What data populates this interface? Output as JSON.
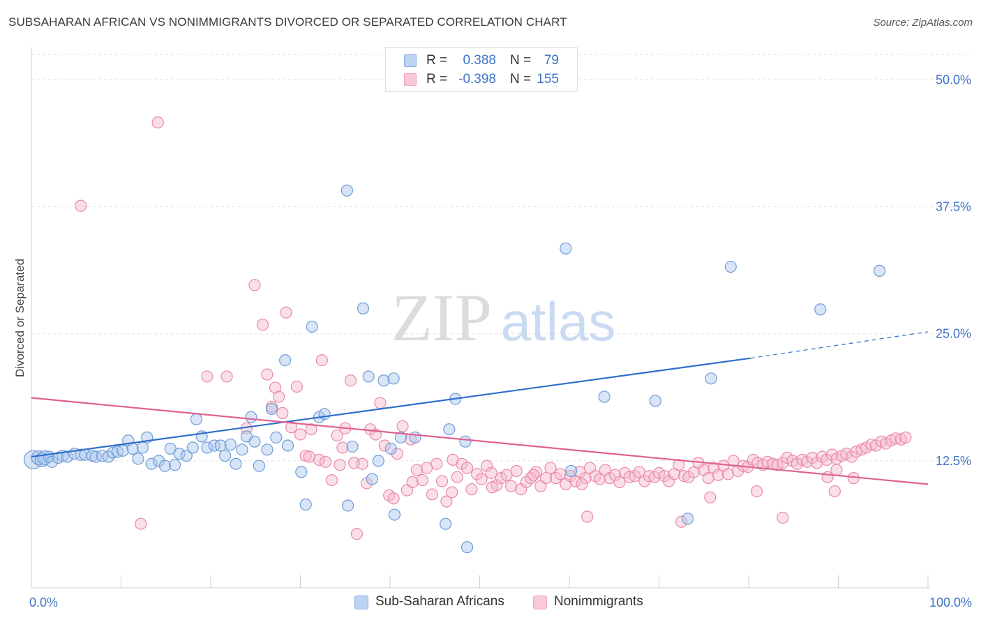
{
  "title": "SUBSAHARAN AFRICAN VS NONIMMIGRANTS DIVORCED OR SEPARATED CORRELATION CHART",
  "source": "Source: ZipAtlas.com",
  "watermark": {
    "part1": "ZIP",
    "part2": "atlas"
  },
  "legend": {
    "r_label": "R =",
    "n_label": "N =",
    "rows": [
      {
        "r": "0.388",
        "n": "79"
      },
      {
        "r": "-0.398",
        "n": "155"
      }
    ]
  },
  "colors": {
    "blue_fill": "#a9c6ee",
    "blue_stroke": "#6f9bd8",
    "blue_line": "#2f6fcc",
    "pink_fill": "#f5b8cc",
    "pink_stroke": "#e98aa9",
    "pink_line": "#e0628e",
    "tick_label": "#3e74c8",
    "grid": "#e2e2e2"
  },
  "chart_data": {
    "type": "scatter",
    "xlabel": "",
    "ylabel": "Divorced or Separated",
    "xlim": [
      0,
      100
    ],
    "ylim": [
      0,
      50
    ],
    "x_tick_labels": [
      "0.0%",
      "100.0%"
    ],
    "y_ticks": [
      12.5,
      25.0,
      37.5,
      50.0
    ],
    "y_tick_labels": [
      "12.5%",
      "25.0%",
      "37.5%",
      "50.0%"
    ],
    "grid": true,
    "legend_position": "top-center",
    "series": [
      {
        "name": "Sub-Saharan Africans",
        "color": "#a9c6ee",
        "trend": {
          "x0": 0,
          "y0": 12.9,
          "x1": 80.2,
          "y1": 22.6,
          "dash_to_x": 100,
          "dash_to_y": 25.2
        },
        "points": [
          [
            0.2,
            12.6
          ],
          [
            0.8,
            12.8
          ],
          [
            1.2,
            12.6
          ],
          [
            1.5,
            12.8
          ],
          [
            2.0,
            12.9
          ],
          [
            2.3,
            12.4
          ],
          [
            3.0,
            12.8
          ],
          [
            3.5,
            13.0
          ],
          [
            4.0,
            12.9
          ],
          [
            4.8,
            13.2
          ],
          [
            5.5,
            13.1
          ],
          [
            6.0,
            13.1
          ],
          [
            6.8,
            13.0
          ],
          [
            7.2,
            12.9
          ],
          [
            7.9,
            13.0
          ],
          [
            8.6,
            12.9
          ],
          [
            9.1,
            13.3
          ],
          [
            9.6,
            13.4
          ],
          [
            10.2,
            13.5
          ],
          [
            10.8,
            14.5
          ],
          [
            11.3,
            13.7
          ],
          [
            11.9,
            12.7
          ],
          [
            12.4,
            13.8
          ],
          [
            12.9,
            14.8
          ],
          [
            13.4,
            12.2
          ],
          [
            14.2,
            12.5
          ],
          [
            14.9,
            12.0
          ],
          [
            15.5,
            13.7
          ],
          [
            16.0,
            12.1
          ],
          [
            16.5,
            13.2
          ],
          [
            17.3,
            13.0
          ],
          [
            18.0,
            13.8
          ],
          [
            18.4,
            16.6
          ],
          [
            19.0,
            14.9
          ],
          [
            19.6,
            13.8
          ],
          [
            20.4,
            14.0
          ],
          [
            21.1,
            14.0
          ],
          [
            21.6,
            13.0
          ],
          [
            22.2,
            14.1
          ],
          [
            22.8,
            12.2
          ],
          [
            23.5,
            13.6
          ],
          [
            24.0,
            14.9
          ],
          [
            24.5,
            16.8
          ],
          [
            24.9,
            14.4
          ],
          [
            25.4,
            12.0
          ],
          [
            26.3,
            13.6
          ],
          [
            26.8,
            17.6
          ],
          [
            27.3,
            14.8
          ],
          [
            28.3,
            22.4
          ],
          [
            28.6,
            14.0
          ],
          [
            30.1,
            11.4
          ],
          [
            30.6,
            8.2
          ],
          [
            31.3,
            25.7
          ],
          [
            32.1,
            16.8
          ],
          [
            32.7,
            17.1
          ],
          [
            35.2,
            39.1
          ],
          [
            35.3,
            8.1
          ],
          [
            35.8,
            13.9
          ],
          [
            37.0,
            27.5
          ],
          [
            37.6,
            20.8
          ],
          [
            38.0,
            10.7
          ],
          [
            38.7,
            12.5
          ],
          [
            39.3,
            20.4
          ],
          [
            40.1,
            13.7
          ],
          [
            40.4,
            20.6
          ],
          [
            40.5,
            7.2
          ],
          [
            41.2,
            14.8
          ],
          [
            42.8,
            14.8
          ],
          [
            46.2,
            6.3
          ],
          [
            46.6,
            15.6
          ],
          [
            47.3,
            18.6
          ],
          [
            48.4,
            14.4
          ],
          [
            48.6,
            4.0
          ],
          [
            59.6,
            33.4
          ],
          [
            60.2,
            11.5
          ],
          [
            63.9,
            18.8
          ],
          [
            69.6,
            18.4
          ],
          [
            73.2,
            6.8
          ],
          [
            75.8,
            20.6
          ],
          [
            78.0,
            31.6
          ],
          [
            88.0,
            27.4
          ],
          [
            94.6,
            31.2
          ]
        ]
      },
      {
        "name": "Nonimmigrants",
        "color": "#f5b8cc",
        "trend": {
          "x0": 0,
          "y0": 18.7,
          "x1": 100,
          "y1": 10.2
        },
        "points": [
          [
            5.5,
            37.6
          ],
          [
            12.2,
            6.3
          ],
          [
            14.1,
            45.8
          ],
          [
            19.6,
            20.8
          ],
          [
            21.8,
            20.8
          ],
          [
            24.0,
            15.7
          ],
          [
            24.9,
            29.8
          ],
          [
            25.8,
            25.9
          ],
          [
            26.3,
            21.0
          ],
          [
            26.8,
            17.8
          ],
          [
            27.2,
            19.7
          ],
          [
            27.6,
            18.8
          ],
          [
            28.0,
            17.2
          ],
          [
            28.4,
            27.1
          ],
          [
            29.0,
            15.8
          ],
          [
            29.6,
            19.8
          ],
          [
            30.0,
            15.1
          ],
          [
            30.6,
            13.0
          ],
          [
            31.2,
            15.6
          ],
          [
            32.1,
            12.6
          ],
          [
            32.4,
            22.4
          ],
          [
            32.8,
            12.4
          ],
          [
            33.5,
            10.6
          ],
          [
            34.1,
            15.0
          ],
          [
            34.4,
            12.1
          ],
          [
            35.0,
            15.7
          ],
          [
            35.6,
            20.4
          ],
          [
            36.0,
            12.3
          ],
          [
            36.9,
            12.2
          ],
          [
            37.4,
            10.3
          ],
          [
            37.8,
            15.6
          ],
          [
            38.4,
            15.1
          ],
          [
            38.9,
            18.2
          ],
          [
            39.4,
            14.0
          ],
          [
            39.9,
            9.1
          ],
          [
            40.4,
            8.8
          ],
          [
            40.8,
            13.2
          ],
          [
            41.4,
            15.9
          ],
          [
            41.9,
            9.6
          ],
          [
            42.5,
            10.4
          ],
          [
            43.0,
            11.6
          ],
          [
            43.6,
            10.6
          ],
          [
            44.1,
            11.8
          ],
          [
            44.7,
            9.2
          ],
          [
            45.2,
            12.2
          ],
          [
            45.8,
            10.5
          ],
          [
            46.3,
            8.5
          ],
          [
            46.9,
            9.4
          ],
          [
            47.5,
            10.9
          ],
          [
            48.0,
            12.2
          ],
          [
            48.6,
            11.8
          ],
          [
            49.1,
            9.7
          ],
          [
            49.7,
            11.2
          ],
          [
            50.2,
            10.7
          ],
          [
            50.8,
            12.0
          ],
          [
            51.3,
            11.3
          ],
          [
            51.9,
            10.1
          ],
          [
            52.4,
            10.8
          ],
          [
            53.0,
            11.1
          ],
          [
            53.5,
            10.0
          ],
          [
            54.1,
            11.5
          ],
          [
            54.6,
            9.7
          ],
          [
            55.2,
            10.4
          ],
          [
            55.7,
            10.8
          ],
          [
            56.3,
            11.4
          ],
          [
            56.8,
            10.0
          ],
          [
            57.4,
            10.8
          ],
          [
            57.9,
            11.8
          ],
          [
            58.5,
            10.8
          ],
          [
            59.0,
            11.2
          ],
          [
            59.6,
            10.2
          ],
          [
            60.1,
            11.0
          ],
          [
            60.7,
            10.5
          ],
          [
            61.2,
            11.4
          ],
          [
            61.8,
            10.8
          ],
          [
            62.3,
            11.8
          ],
          [
            62.9,
            11.0
          ],
          [
            63.4,
            10.7
          ],
          [
            64.0,
            11.6
          ],
          [
            64.5,
            10.8
          ],
          [
            65.1,
            11.1
          ],
          [
            65.6,
            10.4
          ],
          [
            66.2,
            11.3
          ],
          [
            66.7,
            10.9
          ],
          [
            67.3,
            11.0
          ],
          [
            67.8,
            11.4
          ],
          [
            68.4,
            10.5
          ],
          [
            68.9,
            11.0
          ],
          [
            69.5,
            10.9
          ],
          [
            70.0,
            11.3
          ],
          [
            70.6,
            11.0
          ],
          [
            71.1,
            10.5
          ],
          [
            71.7,
            11.2
          ],
          [
            72.2,
            12.1
          ],
          [
            72.8,
            11.0
          ],
          [
            73.3,
            10.9
          ],
          [
            73.9,
            11.4
          ],
          [
            74.4,
            12.3
          ],
          [
            75.0,
            11.6
          ],
          [
            75.5,
            10.8
          ],
          [
            76.1,
            11.8
          ],
          [
            76.6,
            11.1
          ],
          [
            77.2,
            12.0
          ],
          [
            77.7,
            11.2
          ],
          [
            78.3,
            12.5
          ],
          [
            78.8,
            11.5
          ],
          [
            79.4,
            12.0
          ],
          [
            79.9,
            11.9
          ],
          [
            80.5,
            12.6
          ],
          [
            81.0,
            12.3
          ],
          [
            81.6,
            12.1
          ],
          [
            82.1,
            12.4
          ],
          [
            82.7,
            12.2
          ],
          [
            83.2,
            12.1
          ],
          [
            83.8,
            12.3
          ],
          [
            84.3,
            12.8
          ],
          [
            84.9,
            12.5
          ],
          [
            85.4,
            12.2
          ],
          [
            86.0,
            12.6
          ],
          [
            86.5,
            12.4
          ],
          [
            87.1,
            12.8
          ],
          [
            87.6,
            12.3
          ],
          [
            88.2,
            12.9
          ],
          [
            88.7,
            12.6
          ],
          [
            89.3,
            13.1
          ],
          [
            89.8,
            12.7
          ],
          [
            90.4,
            13.0
          ],
          [
            90.9,
            13.2
          ],
          [
            91.5,
            12.9
          ],
          [
            92.0,
            13.4
          ],
          [
            92.6,
            13.6
          ],
          [
            93.1,
            13.8
          ],
          [
            93.7,
            14.1
          ],
          [
            94.2,
            14.0
          ],
          [
            94.8,
            14.4
          ],
          [
            95.3,
            14.2
          ],
          [
            95.9,
            14.5
          ],
          [
            96.4,
            14.7
          ],
          [
            97.0,
            14.6
          ],
          [
            97.5,
            14.8
          ],
          [
            62.0,
            7.0
          ],
          [
            72.5,
            6.5
          ],
          [
            75.7,
            8.9
          ],
          [
            80.9,
            9.5
          ],
          [
            83.8,
            6.9
          ],
          [
            89.6,
            9.5
          ],
          [
            36.3,
            5.3
          ],
          [
            88.8,
            10.9
          ],
          [
            89.8,
            11.6
          ],
          [
            91.7,
            10.8
          ],
          [
            31.0,
            12.9
          ],
          [
            34.7,
            13.8
          ],
          [
            42.3,
            14.6
          ],
          [
            47.0,
            12.6
          ],
          [
            51.4,
            9.9
          ],
          [
            56.0,
            11.1
          ],
          [
            61.4,
            10.2
          ]
        ]
      }
    ]
  },
  "bottom_legend": [
    {
      "label": "Sub-Saharan Africans"
    },
    {
      "label": "Nonimmigrants"
    }
  ]
}
